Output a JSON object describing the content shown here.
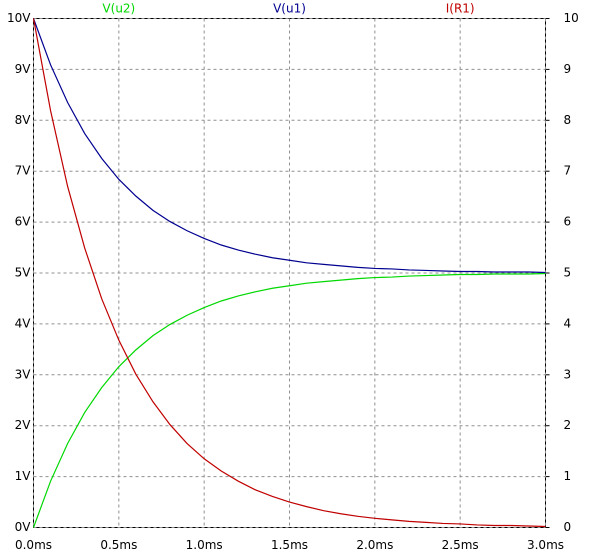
{
  "chart_data": {
    "type": "line",
    "x": [
      0,
      0.1,
      0.2,
      0.3,
      0.4,
      0.5,
      0.6,
      0.7,
      0.8,
      0.9,
      1.0,
      1.1,
      1.2,
      1.3,
      1.4,
      1.5,
      1.6,
      1.7,
      1.8,
      1.9,
      2.0,
      2.1,
      2.2,
      2.3,
      2.4,
      2.5,
      2.6,
      2.7,
      2.8,
      2.9,
      3.0
    ],
    "series": [
      {
        "name": "V(u2)",
        "color": "#00d800",
        "values": [
          0,
          0.91,
          1.65,
          2.26,
          2.75,
          3.16,
          3.49,
          3.77,
          3.99,
          4.17,
          4.32,
          4.45,
          4.55,
          4.63,
          4.7,
          4.75,
          4.8,
          4.83,
          4.86,
          4.89,
          4.91,
          4.92,
          4.94,
          4.95,
          4.96,
          4.97,
          4.97,
          4.98,
          4.98,
          4.98,
          4.99
        ]
      },
      {
        "name": "V(u1)",
        "color": "#000090",
        "values": [
          10,
          9.09,
          8.35,
          7.74,
          7.25,
          6.84,
          6.51,
          6.23,
          6.01,
          5.83,
          5.68,
          5.55,
          5.45,
          5.37,
          5.3,
          5.25,
          5.2,
          5.17,
          5.14,
          5.11,
          5.09,
          5.08,
          5.06,
          5.05,
          5.04,
          5.03,
          5.03,
          5.02,
          5.02,
          5.02,
          5.01
        ]
      },
      {
        "name": "I(R1)",
        "color": "#c00000",
        "axis": "y2",
        "values": [
          10,
          8.19,
          6.7,
          5.49,
          4.49,
          3.68,
          3.01,
          2.47,
          2.02,
          1.65,
          1.35,
          1.11,
          0.91,
          0.74,
          0.61,
          0.5,
          0.41,
          0.33,
          0.27,
          0.22,
          0.18,
          0.15,
          0.12,
          0.1,
          0.08,
          0.07,
          0.05,
          0.04,
          0.04,
          0.03,
          0.02
        ]
      }
    ],
    "xlim": [
      0,
      3
    ],
    "xticks": [
      {
        "value": 0,
        "label": "0.0ms"
      },
      {
        "value": 0.5,
        "label": "0.5ms"
      },
      {
        "value": 1,
        "label": "1.0ms"
      },
      {
        "value": 1.5,
        "label": "1.5ms"
      },
      {
        "value": 2,
        "label": "2.0ms"
      },
      {
        "value": 2.5,
        "label": "2.5ms"
      },
      {
        "value": 3,
        "label": "3.0ms"
      }
    ],
    "ylim": [
      0,
      10
    ],
    "yticks": [
      {
        "value": 0,
        "label": "0V"
      },
      {
        "value": 1,
        "label": "1V"
      },
      {
        "value": 2,
        "label": "2V"
      },
      {
        "value": 3,
        "label": "3V"
      },
      {
        "value": 4,
        "label": "4V"
      },
      {
        "value": 5,
        "label": "5V"
      },
      {
        "value": 6,
        "label": "6V"
      },
      {
        "value": 7,
        "label": "7V"
      },
      {
        "value": 8,
        "label": "8V"
      },
      {
        "value": 9,
        "label": "9V"
      },
      {
        "value": 10,
        "label": "10V"
      }
    ],
    "y2lim": [
      0,
      10
    ],
    "y2ticks": [
      0,
      1,
      2,
      3,
      4,
      5,
      6,
      7,
      8,
      9,
      10
    ],
    "grid": true
  }
}
